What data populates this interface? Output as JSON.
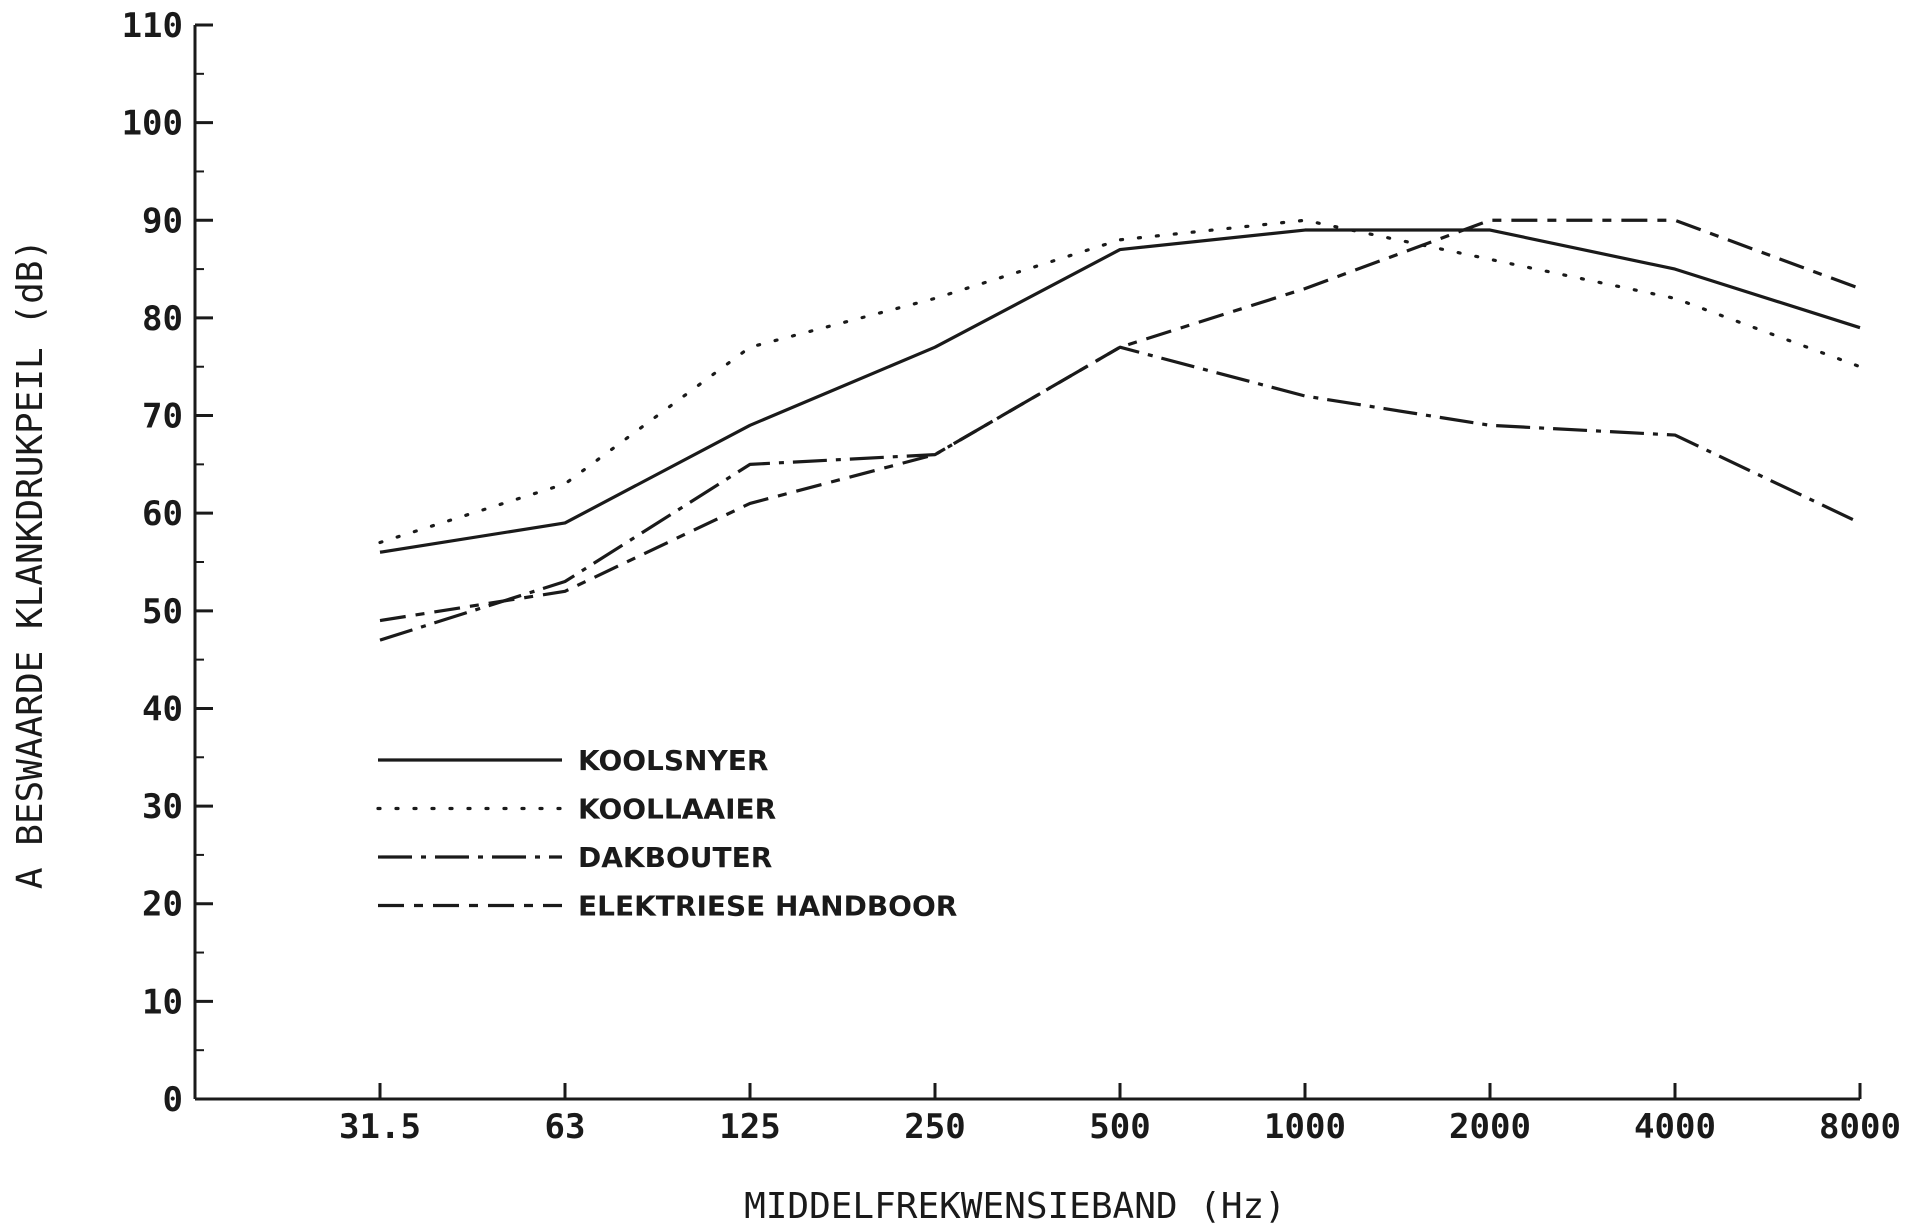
{
  "chart_data": {
    "type": "line",
    "title": "",
    "xlabel": "MIDDELFREKWENSIEBAND (Hz)",
    "ylabel": "A BESWAARDE KLANKDRUKPEIL (dB)",
    "categories": [
      "31.5",
      "63",
      "125",
      "250",
      "500",
      "1000",
      "2000",
      "4000",
      "8000"
    ],
    "yticks": [
      "0",
      "10",
      "20",
      "30",
      "40",
      "50",
      "60",
      "70",
      "80",
      "90",
      "100",
      "110"
    ],
    "ylim": [
      0,
      110
    ],
    "grid": false,
    "legend_position": "lower-left",
    "line_color": "#1a1a1a",
    "series": [
      {
        "name": "KOOLSNYER",
        "style": "solid",
        "values": [
          56,
          59,
          69,
          77,
          87,
          89,
          89,
          85,
          79
        ]
      },
      {
        "name": "KOOLLAAIER",
        "style": "dotted",
        "values": [
          57,
          63,
          77,
          82,
          88,
          90,
          86,
          82,
          75
        ]
      },
      {
        "name": "DAKBOUTER",
        "style": "dashdot",
        "values": [
          47,
          53,
          65,
          66,
          77,
          72,
          69,
          68,
          59
        ]
      },
      {
        "name": "ELEKTRIESE HANDBOOR",
        "style": "longdashdot",
        "values": [
          49,
          52,
          61,
          66,
          77,
          83,
          90,
          90,
          83
        ]
      }
    ]
  }
}
